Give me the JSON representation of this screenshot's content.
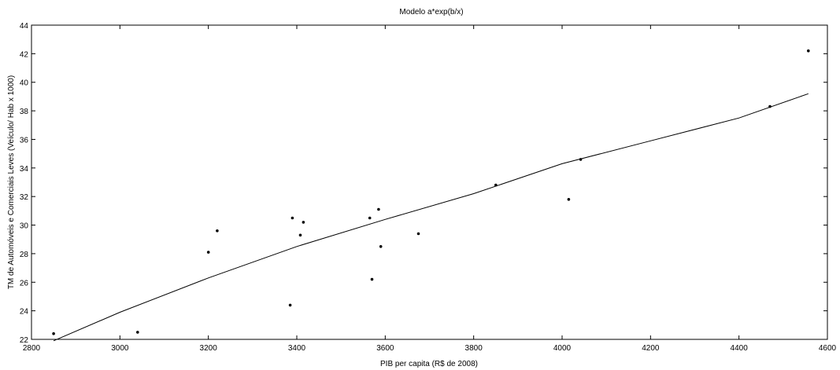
{
  "chart_data": {
    "type": "scatter",
    "title": "Modelo a*exp(b/x)",
    "xlabel": "PIB per capita (R$ de 2008)",
    "ylabel": "TM de Automóveis e Comerciais Leves (Veículo/ Hab x 1000)",
    "xlim": [
      2800,
      4600
    ],
    "ylim": [
      22,
      44
    ],
    "xticks": [
      2800,
      3000,
      3200,
      3400,
      3600,
      3800,
      4000,
      4200,
      4400,
      4600
    ],
    "yticks": [
      22,
      24,
      26,
      28,
      30,
      32,
      34,
      36,
      38,
      40,
      42,
      44
    ],
    "grid": false,
    "legend": "none",
    "colors": {
      "points": "#000000",
      "line": "#000000",
      "frame": "#000000"
    },
    "series": [
      {
        "type": "scatter",
        "x": [
          2850,
          3040,
          3200,
          3220,
          3385,
          3390,
          3408,
          3415,
          3565,
          3570,
          3585,
          3590,
          3675,
          3850,
          4015,
          4042,
          4470,
          4557
        ],
        "y": [
          22.4,
          22.5,
          28.1,
          29.6,
          24.4,
          30.5,
          29.3,
          30.2,
          30.5,
          26.2,
          31.1,
          28.5,
          29.4,
          32.8,
          31.8,
          34.6,
          38.3,
          42.2
        ]
      },
      {
        "type": "line",
        "x": [
          2850,
          3000,
          3200,
          3400,
          3600,
          3800,
          4000,
          4200,
          4400,
          4557
        ],
        "y": [
          21.9,
          23.9,
          26.3,
          28.5,
          30.4,
          32.2,
          34.3,
          35.9,
          37.5,
          39.2
        ]
      }
    ]
  }
}
